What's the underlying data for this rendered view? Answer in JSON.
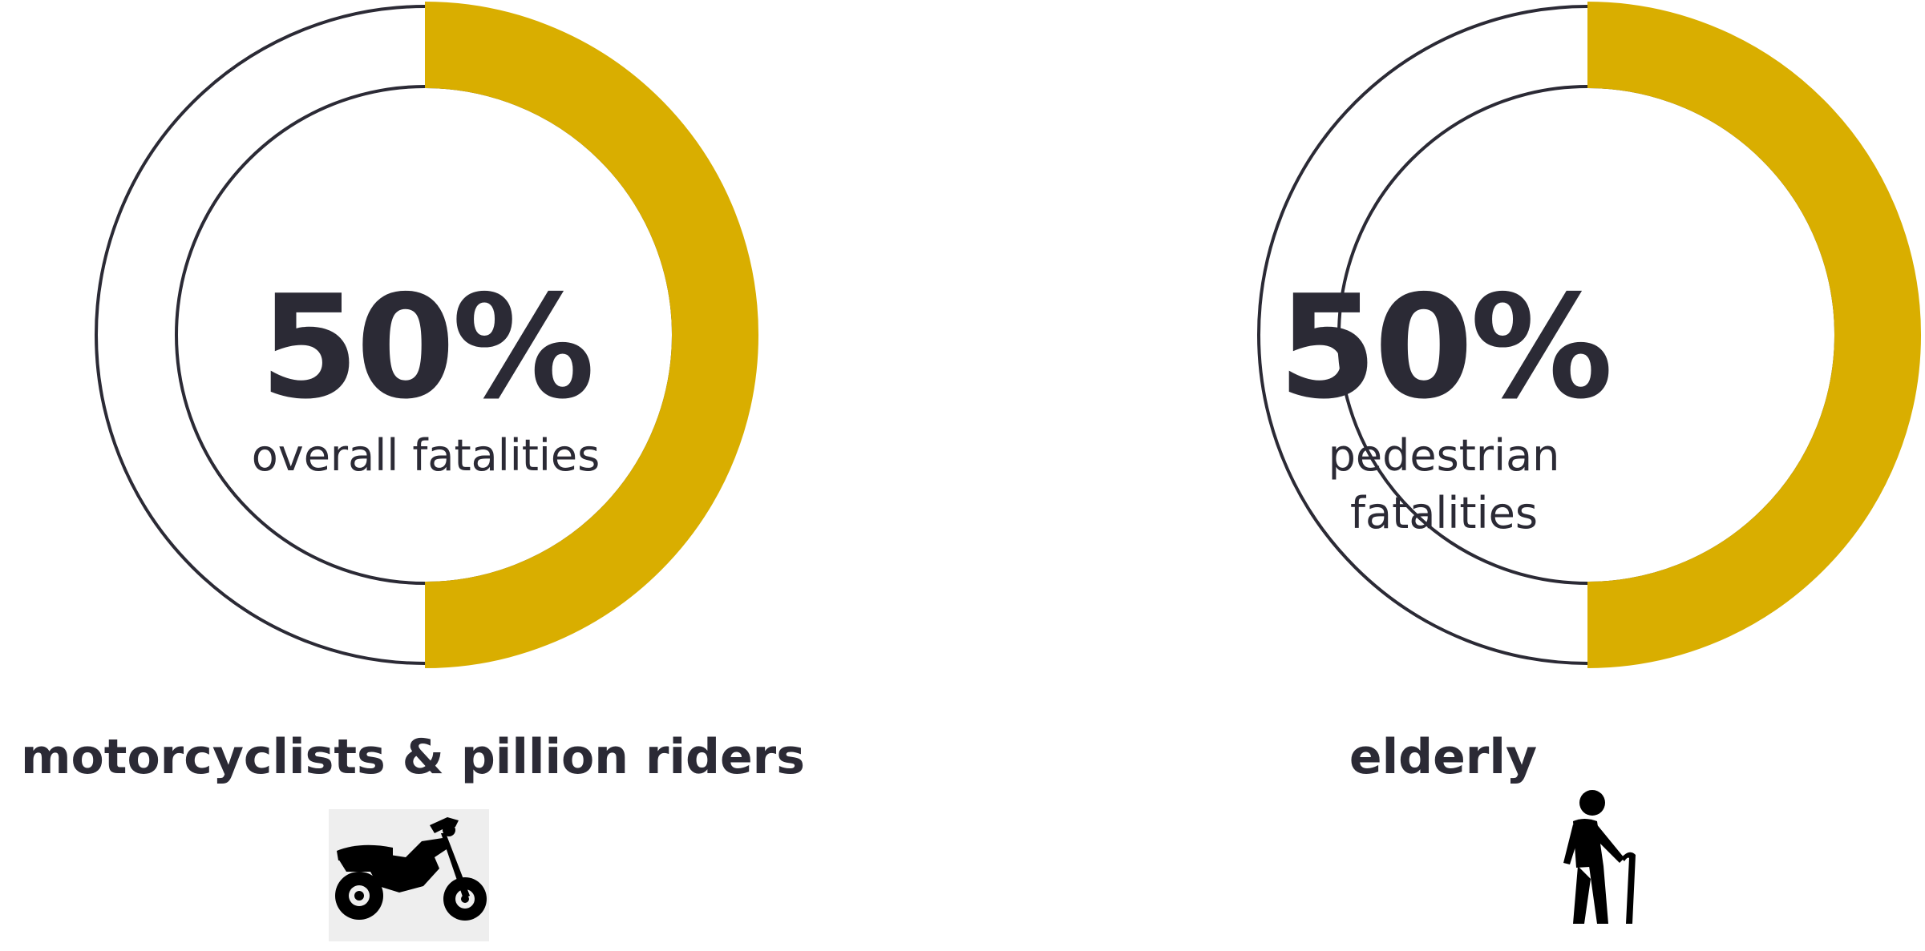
{
  "colors": {
    "accent": "#d9ae00",
    "ring": "#2b2a35",
    "text": "#2b2a35",
    "icon": "#000000",
    "icon_bg": "#eeeeee"
  },
  "chart_data": [
    {
      "type": "pie",
      "group": "motorcyclists & pillion riders",
      "value_label": "50%",
      "sublabel": "overall fatalities",
      "slices": [
        {
          "name": "highlighted",
          "value": 50
        },
        {
          "name": "remainder",
          "value": 50
        }
      ],
      "icon": "motorcycle-icon"
    },
    {
      "type": "pie",
      "group": "elderly",
      "value_label": "50%",
      "sublabel": "pedestrian fatalities",
      "slices": [
        {
          "name": "highlighted",
          "value": 50
        },
        {
          "name": "remainder",
          "value": 50
        }
      ],
      "icon": "elderly-person-icon"
    }
  ]
}
